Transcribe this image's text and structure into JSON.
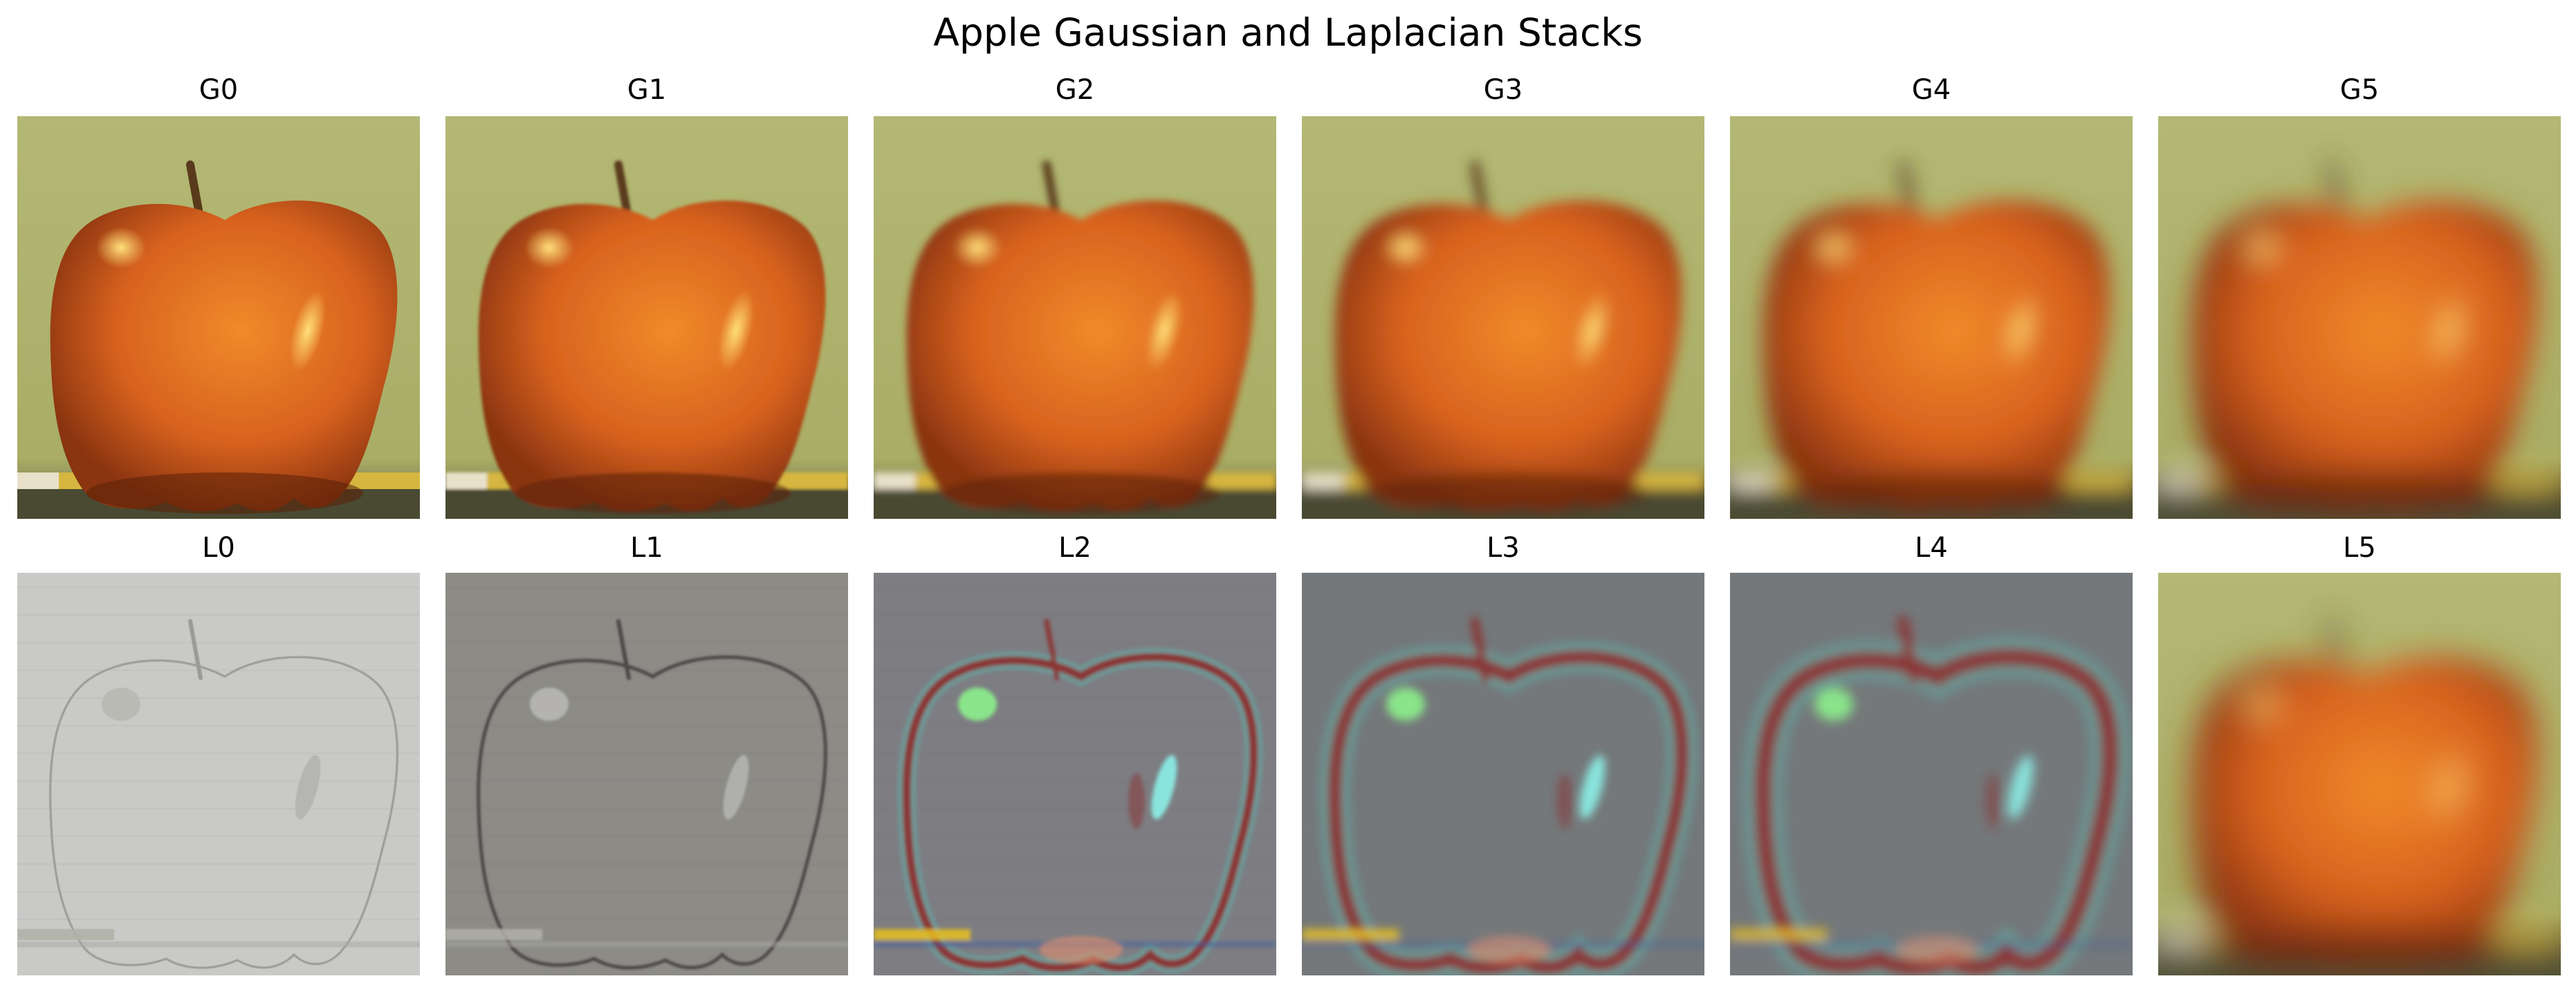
{
  "title": "Apple Gaussian and Laplacian Stacks",
  "rows": [
    {
      "kind": "gaussian",
      "panels": [
        {
          "label": "G0",
          "blur": 0
        },
        {
          "label": "G1",
          "blur": 2
        },
        {
          "label": "G2",
          "blur": 5
        },
        {
          "label": "G3",
          "blur": 9
        },
        {
          "label": "G4",
          "blur": 15
        },
        {
          "label": "G5",
          "blur": 20
        }
      ]
    },
    {
      "kind": "laplacian",
      "panels": [
        {
          "label": "L0",
          "style": "L0"
        },
        {
          "label": "L1",
          "style": "L1"
        },
        {
          "label": "L2",
          "style": "L2"
        },
        {
          "label": "L3",
          "style": "L3"
        },
        {
          "label": "L4",
          "style": "L4"
        },
        {
          "label": "L5",
          "style": "L5"
        }
      ]
    }
  ],
  "colors": {
    "apple": "#d8621e",
    "apple_dark": "#8a3410",
    "background": "#a9ad66",
    "highlight": "#ffe07a",
    "laplacian_gray": "#8a8a88",
    "edge_red": "#8a3434",
    "edge_cyan": "#5fb0a8"
  }
}
